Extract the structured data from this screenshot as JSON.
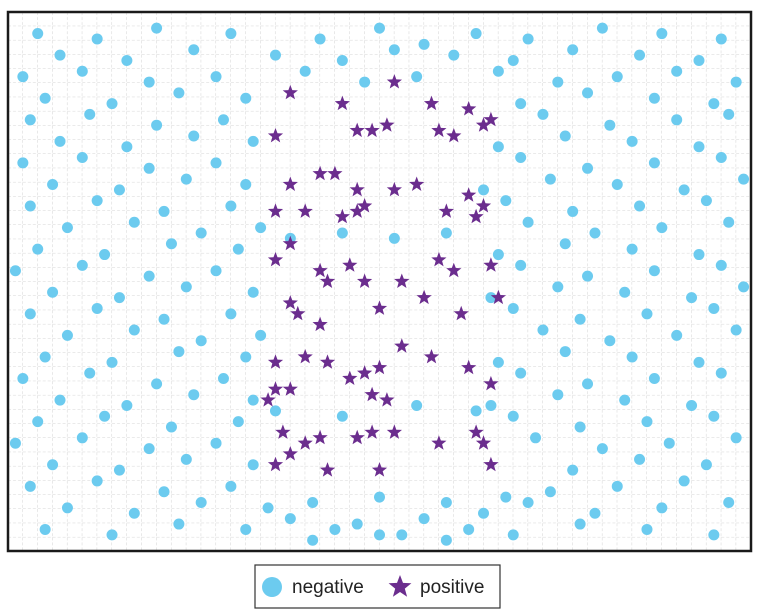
{
  "chart_data": {
    "type": "scatter",
    "xlim": [
      0,
      100
    ],
    "ylim": [
      0,
      100
    ],
    "grid": true,
    "legend": "bottom",
    "series": [
      {
        "name": "negative",
        "color": "#6ccbef",
        "marker": "circle",
        "x": [
          4,
          12,
          20,
          30,
          42,
          50,
          56,
          63,
          70,
          80,
          88,
          96,
          7,
          16,
          25,
          36,
          45,
          52,
          60,
          68,
          76,
          85,
          93,
          2,
          10,
          19,
          28,
          40,
          48,
          55,
          66,
          74,
          82,
          90,
          98,
          5,
          14,
          23,
          32,
          69,
          78,
          87,
          95,
          3,
          11,
          20,
          29,
          72,
          81,
          90,
          97,
          7,
          16,
          25,
          33,
          66,
          75,
          84,
          93,
          2,
          10,
          19,
          28,
          69,
          78,
          87,
          96,
          6,
          15,
          24,
          32,
          64,
          73,
          82,
          91,
          99,
          3,
          12,
          21,
          30,
          38,
          45,
          52,
          59,
          67,
          76,
          85,
          94,
          8,
          17,
          26,
          34,
          70,
          79,
          88,
          97,
          4,
          13,
          22,
          31,
          66,
          75,
          84,
          93,
          1,
          10,
          19,
          28,
          69,
          78,
          87,
          96,
          6,
          15,
          24,
          33,
          65,
          74,
          83,
          92,
          99,
          3,
          12,
          21,
          30,
          68,
          77,
          86,
          95,
          8,
          17,
          26,
          34,
          72,
          81,
          90,
          98,
          5,
          14,
          23,
          32,
          66,
          75,
          84,
          93,
          2,
          11,
          20,
          29,
          69,
          78,
          87,
          96,
          7,
          16,
          25,
          33,
          65,
          74,
          83,
          92,
          4,
          13,
          22,
          31,
          68,
          77,
          86,
          95,
          1,
          10,
          19,
          28,
          36,
          45,
          55,
          63,
          71,
          80,
          89,
          98,
          6,
          15,
          24,
          33,
          41,
          50,
          59,
          67,
          76,
          85,
          94,
          3,
          12,
          21,
          30,
          38,
          47,
          56,
          64,
          73,
          82,
          91,
          8,
          17,
          26,
          35,
          44,
          53,
          62,
          70,
          79,
          88,
          97,
          5,
          14,
          23,
          32,
          41,
          50,
          59,
          68,
          77,
          86,
          95
        ],
        "y": [
          96,
          95,
          97,
          96,
          95,
          97,
          94,
          96,
          95,
          97,
          96,
          95,
          92,
          91,
          93,
          92,
          91,
          93,
          92,
          91,
          93,
          92,
          91,
          88,
          89,
          87,
          88,
          89,
          87,
          88,
          89,
          87,
          88,
          89,
          87,
          84,
          83,
          85,
          84,
          83,
          85,
          84,
          83,
          80,
          81,
          79,
          80,
          81,
          79,
          80,
          81,
          76,
          75,
          77,
          76,
          75,
          77,
          76,
          75,
          72,
          73,
          71,
          72,
          73,
          71,
          72,
          73,
          68,
          67,
          69,
          68,
          67,
          69,
          68,
          67,
          69,
          64,
          65,
          63,
          64,
          58,
          59,
          58,
          59,
          65,
          63,
          64,
          65,
          60,
          61,
          59,
          60,
          61,
          59,
          60,
          61,
          56,
          55,
          57,
          56,
          55,
          57,
          56,
          55,
          52,
          53,
          51,
          52,
          53,
          51,
          52,
          53,
          48,
          47,
          49,
          48,
          47,
          49,
          48,
          47,
          49,
          44,
          45,
          43,
          44,
          45,
          43,
          44,
          45,
          40,
          41,
          39,
          40,
          41,
          39,
          40,
          41,
          36,
          35,
          37,
          36,
          35,
          37,
          36,
          35,
          32,
          33,
          31,
          32,
          33,
          31,
          32,
          33,
          28,
          27,
          29,
          28,
          27,
          29,
          28,
          27,
          24,
          25,
          23,
          24,
          25,
          23,
          24,
          25,
          20,
          21,
          19,
          20,
          26,
          25,
          27,
          26,
          21,
          19,
          20,
          21,
          16,
          15,
          17,
          16,
          9,
          10,
          9,
          10,
          15,
          17,
          16,
          12,
          13,
          11,
          12,
          6,
          5,
          6,
          7,
          11,
          12,
          13,
          8,
          7,
          9,
          8,
          4,
          3,
          4,
          9,
          7,
          8,
          9,
          4,
          3,
          5,
          4,
          2,
          3,
          2,
          3,
          5,
          4,
          3
        ]
      },
      {
        "name": "positive",
        "color": "#6b2d8e",
        "marker": "star",
        "x": [
          38,
          45,
          52,
          57,
          62,
          65,
          36,
          47,
          49,
          51,
          58,
          60,
          64,
          38,
          42,
          44,
          47,
          52,
          55,
          62,
          64,
          36,
          40,
          45,
          47,
          48,
          59,
          63,
          36,
          38,
          42,
          43,
          46,
          48,
          53,
          58,
          60,
          65,
          38,
          39,
          42,
          50,
          56,
          61,
          66,
          36,
          40,
          43,
          46,
          48,
          50,
          53,
          57,
          62,
          65,
          36,
          38,
          49,
          51,
          37,
          40,
          42,
          47,
          49,
          52,
          58,
          63,
          64,
          36,
          38,
          43,
          50,
          65,
          35
        ],
        "y": [
          85,
          83,
          87,
          83,
          82,
          80,
          77,
          78,
          78,
          79,
          78,
          77,
          79,
          68,
          70,
          70,
          67,
          67,
          68,
          66,
          64,
          63,
          63,
          62,
          63,
          64,
          63,
          62,
          54,
          57,
          52,
          50,
          53,
          50,
          50,
          54,
          52,
          53,
          46,
          44,
          42,
          45,
          47,
          44,
          47,
          35,
          36,
          35,
          32,
          33,
          34,
          38,
          36,
          34,
          31,
          30,
          30,
          29,
          28,
          22,
          20,
          21,
          21,
          22,
          22,
          20,
          22,
          20,
          16,
          18,
          15,
          15,
          16,
          28
        ]
      }
    ]
  }
}
